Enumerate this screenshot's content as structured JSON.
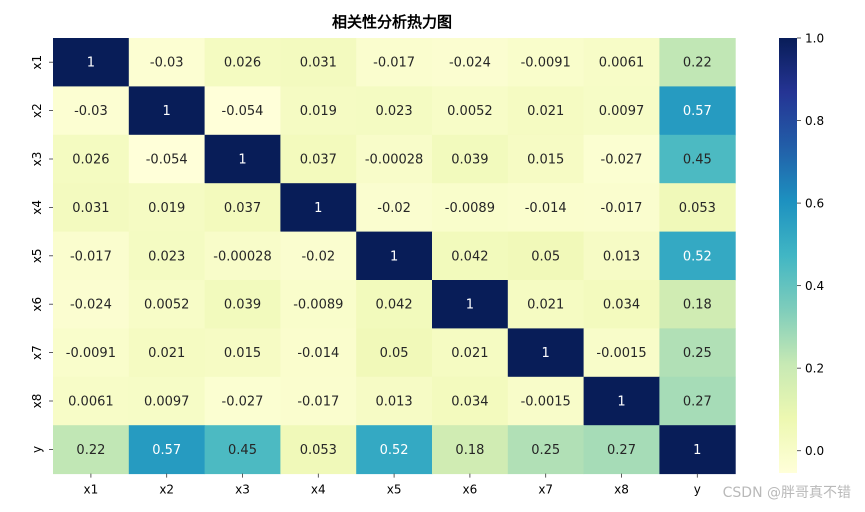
{
  "chart_data": {
    "type": "heatmap",
    "title": "相关性分析热力图",
    "x_categories": [
      "x1",
      "x2",
      "x3",
      "x4",
      "x5",
      "x6",
      "x7",
      "x8",
      "y"
    ],
    "y_categories": [
      "x1",
      "x2",
      "x3",
      "x4",
      "x5",
      "x6",
      "x7",
      "x8",
      "y"
    ],
    "values": [
      [
        1,
        -0.03,
        0.026,
        0.031,
        -0.017,
        -0.024,
        -0.0091,
        0.0061,
        0.22
      ],
      [
        -0.03,
        1,
        -0.054,
        0.019,
        0.023,
        0.0052,
        0.021,
        0.0097,
        0.57
      ],
      [
        0.026,
        -0.054,
        1,
        0.037,
        -0.00028,
        0.039,
        0.015,
        -0.027,
        0.45
      ],
      [
        0.031,
        0.019,
        0.037,
        1,
        -0.02,
        -0.0089,
        -0.014,
        -0.017,
        0.053
      ],
      [
        -0.017,
        0.023,
        -0.00028,
        -0.02,
        1,
        0.042,
        0.05,
        0.013,
        0.52
      ],
      [
        -0.024,
        0.0052,
        0.039,
        -0.0089,
        0.042,
        1,
        0.021,
        0.034,
        0.18
      ],
      [
        -0.0091,
        0.021,
        0.015,
        -0.014,
        0.05,
        0.021,
        1,
        -0.0015,
        0.25
      ],
      [
        0.0061,
        0.0097,
        -0.027,
        -0.017,
        0.013,
        0.034,
        -0.0015,
        1,
        0.27
      ],
      [
        0.22,
        0.57,
        0.45,
        0.053,
        0.52,
        0.18,
        0.25,
        0.27,
        1
      ]
    ],
    "labels": [
      [
        "1",
        "-0.03",
        "0.026",
        "0.031",
        "-0.017",
        "-0.024",
        "-0.0091",
        "0.0061",
        "0.22"
      ],
      [
        "-0.03",
        "1",
        "-0.054",
        "0.019",
        "0.023",
        "0.0052",
        "0.021",
        "0.0097",
        "0.57"
      ],
      [
        "0.026",
        "-0.054",
        "1",
        "0.037",
        "-0.00028",
        "0.039",
        "0.015",
        "-0.027",
        "0.45"
      ],
      [
        "0.031",
        "0.019",
        "0.037",
        "1",
        "-0.02",
        "-0.0089",
        "-0.014",
        "-0.017",
        "0.053"
      ],
      [
        "-0.017",
        "0.023",
        "-0.00028",
        "-0.02",
        "1",
        "0.042",
        "0.05",
        "0.013",
        "0.52"
      ],
      [
        "-0.024",
        "0.0052",
        "0.039",
        "-0.0089",
        "0.042",
        "1",
        "0.021",
        "0.034",
        "0.18"
      ],
      [
        "-0.0091",
        "0.021",
        "0.015",
        "-0.014",
        "0.05",
        "0.021",
        "1",
        "-0.0015",
        "0.25"
      ],
      [
        "0.0061",
        "0.0097",
        "-0.027",
        "-0.017",
        "0.013",
        "0.034",
        "-0.0015",
        "1",
        "0.27"
      ],
      [
        "0.22",
        "0.57",
        "0.45",
        "0.053",
        "0.52",
        "0.18",
        "0.25",
        "0.27",
        "1"
      ]
    ],
    "colormap": "YlGnBu",
    "color_range": [
      -0.054,
      1
    ],
    "colorbar": {
      "ticks": [
        0.0,
        0.2,
        0.4,
        0.6,
        0.8,
        1.0
      ],
      "tick_labels": [
        "0.0",
        "0.2",
        "0.4",
        "0.6",
        "0.8",
        "1.0"
      ]
    },
    "colors": [
      "#ffffd9",
      "#edf8b1",
      "#c7e9b4",
      "#7fcdbb",
      "#41b6c4",
      "#1d91c0",
      "#225ea8",
      "#253494",
      "#081d58"
    ]
  },
  "watermark": "CSDN @胖哥真不错"
}
